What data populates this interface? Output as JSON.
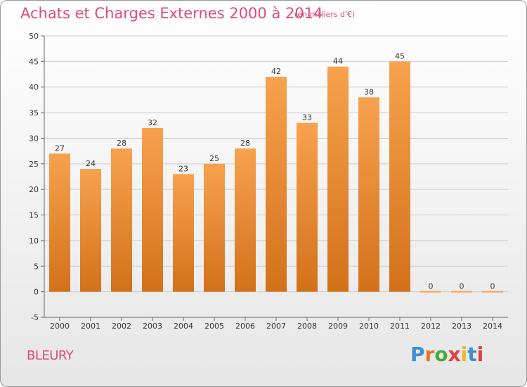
{
  "header": {
    "title": "Achats et Charges Externes 2000 à 2014",
    "subtitle": "(en milliers d'€)"
  },
  "footer": {
    "commune": "BLEURY",
    "logo_text": "Proxiti"
  },
  "colors": {
    "bar_top": "#f7a24e",
    "bar_bottom": "#d3711a",
    "title": "#e04a7c",
    "grid": "#cccccc",
    "logo": [
      "#3d8fd1",
      "#e8742a",
      "#4aa83d",
      "#e33d3d",
      "#f0b429",
      "#3d8fd1",
      "#e33d3d"
    ]
  },
  "chart_data": {
    "type": "bar",
    "title": "Achats et Charges Externes 2000 à 2014",
    "subtitle": "(en milliers d'€)",
    "categories": [
      "2000",
      "2001",
      "2002",
      "2003",
      "2004",
      "2005",
      "2006",
      "2007",
      "2008",
      "2009",
      "2010",
      "2011",
      "2012",
      "2013",
      "2014"
    ],
    "values": [
      27,
      24,
      28,
      32,
      23,
      25,
      28,
      42,
      33,
      44,
      38,
      45,
      0,
      0,
      0
    ],
    "ylim": [
      -5,
      50
    ],
    "yticks": [
      -5,
      0,
      5,
      10,
      15,
      20,
      25,
      30,
      35,
      40,
      45,
      50
    ],
    "xlabel": "",
    "ylabel": "",
    "grid": true,
    "data_labels": true
  }
}
